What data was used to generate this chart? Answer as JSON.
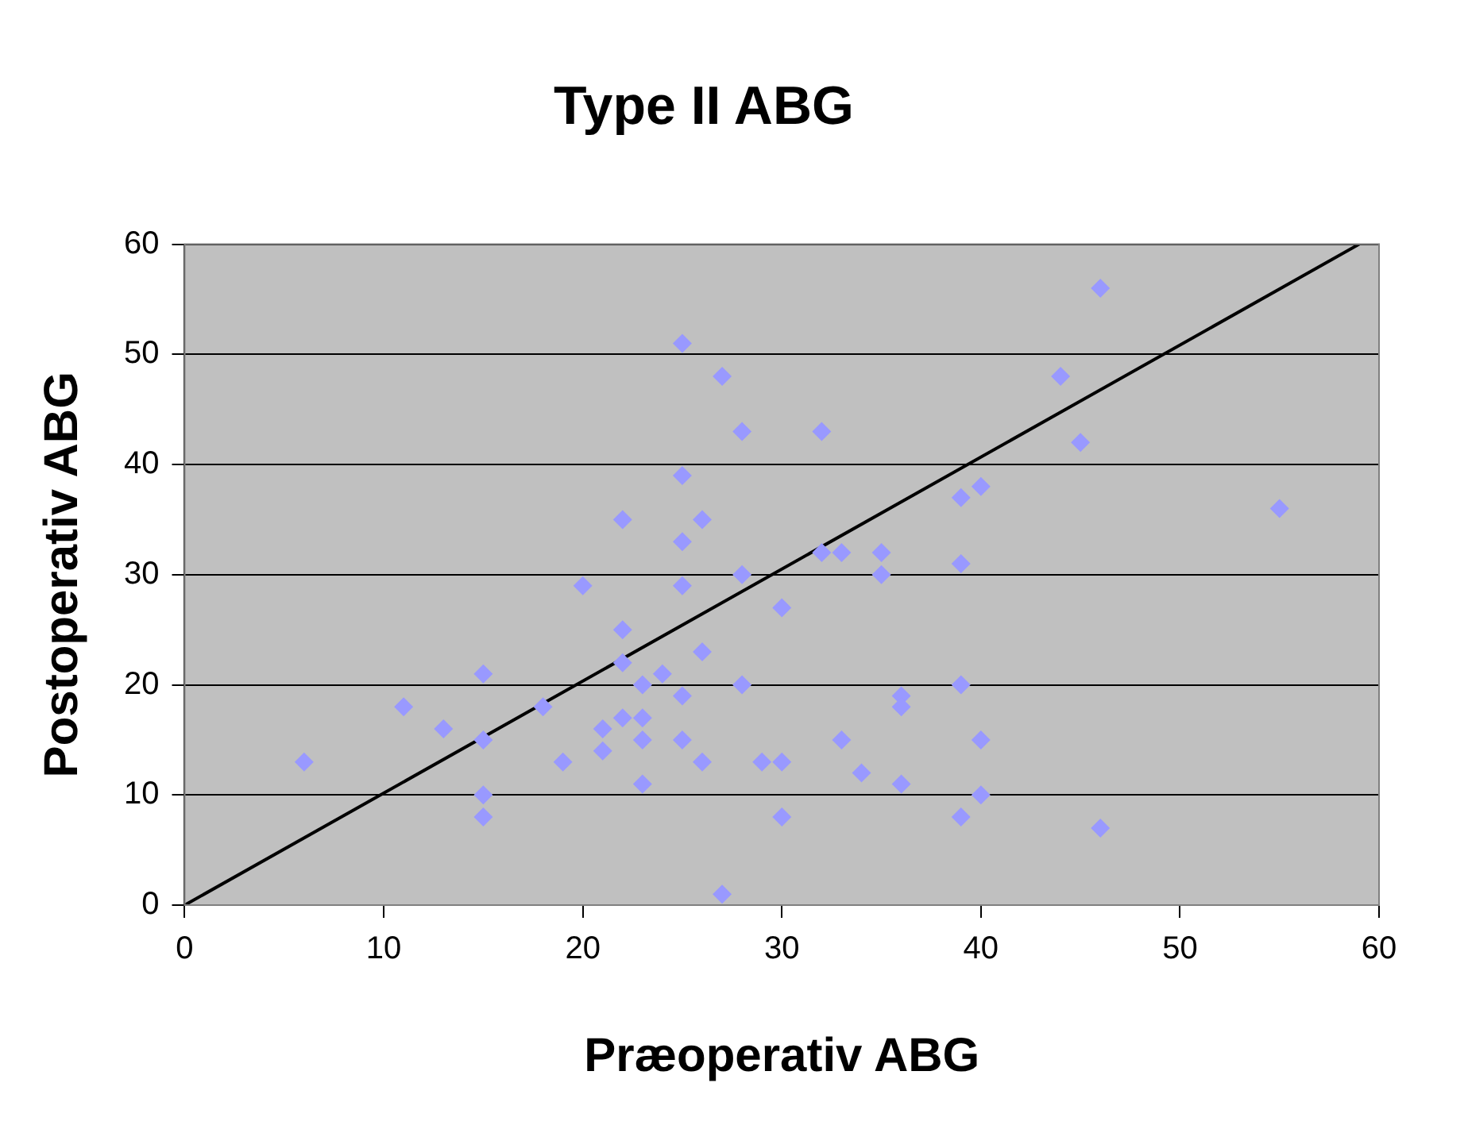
{
  "chart_data": {
    "type": "scatter",
    "title": "Type II ABG",
    "xlabel": "Præoperativ ABG",
    "ylabel": "Postoperativ ABG",
    "xlim": [
      0,
      60
    ],
    "xticks": [
      0,
      10,
      20,
      30,
      40,
      50,
      60
    ],
    "ylim": [
      0,
      60
    ],
    "yticks": [
      0,
      10,
      20,
      30,
      40,
      50,
      60
    ],
    "grid": "y",
    "legend": false,
    "marker": "diamond",
    "series": [
      {
        "color": "#9999ff",
        "x": [
          6,
          11,
          13,
          15,
          15,
          15,
          15,
          18,
          19,
          20,
          21,
          21,
          22,
          22,
          22,
          22,
          23,
          23,
          23,
          23,
          24,
          25,
          25,
          25,
          25,
          25,
          25,
          26,
          26,
          26,
          27,
          27,
          28,
          28,
          28,
          29,
          30,
          30,
          30,
          32,
          32,
          33,
          33,
          34,
          35,
          35,
          36,
          36,
          36,
          39,
          39,
          39,
          39,
          40,
          40,
          40,
          44,
          45,
          46,
          46,
          55
        ],
        "values": [
          13,
          18,
          16,
          21,
          15,
          10,
          8,
          18,
          13,
          29,
          16,
          14,
          35,
          25,
          22,
          17,
          20,
          17,
          15,
          11,
          21,
          51,
          39,
          33,
          29,
          19,
          15,
          35,
          23,
          13,
          48,
          1,
          43,
          30,
          20,
          13,
          27,
          13,
          8,
          43,
          32,
          32,
          15,
          12,
          32,
          30,
          19,
          18,
          11,
          37,
          31,
          20,
          8,
          38,
          15,
          10,
          48,
          42,
          56,
          7,
          36
        ]
      },
      {
        "type": "line",
        "color": "#000000",
        "marker": "none",
        "line_style": "solid",
        "x": [
          0,
          59
        ],
        "values": [
          0,
          60
        ]
      }
    ]
  }
}
